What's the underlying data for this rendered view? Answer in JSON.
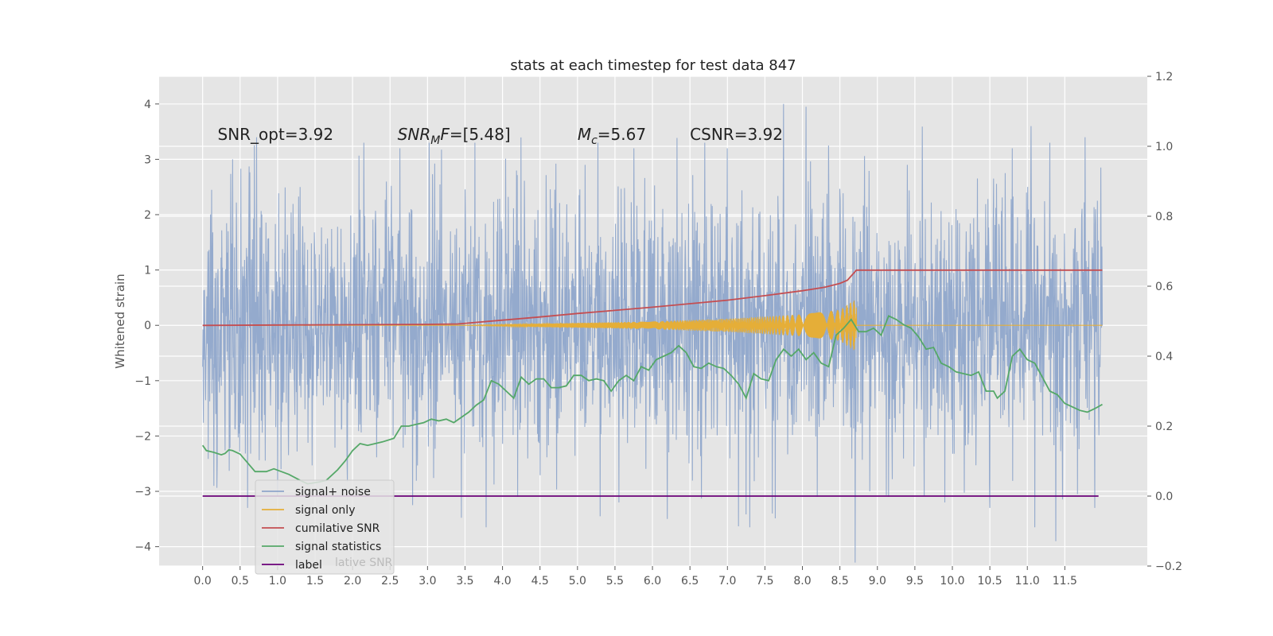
{
  "chart_data": {
    "type": "line",
    "title": "stats at each timestep for test data 847",
    "ylabel": "Whitened strain",
    "ylabel_right": "",
    "xlabel": "",
    "xlim": [
      -0.58,
      12.6
    ],
    "ylim": [
      -4.35,
      4.5
    ],
    "y2lim": [
      -0.2,
      1.2
    ],
    "x_ticks": [
      0,
      0.5,
      1,
      1.5,
      2,
      2.5,
      3,
      3.5,
      4,
      4.5,
      5,
      5.5,
      6,
      6.5,
      7,
      7.5,
      8,
      8.5,
      9,
      9.5,
      10,
      10.5,
      11,
      11.5
    ],
    "x_tick_labels": [
      "0.0",
      "0.5",
      "1.0",
      "1.5",
      "2.0",
      "2.5",
      "3.0",
      "3.5",
      "4.0",
      "4.5",
      "5.0",
      "5.5",
      "6.0",
      "6.5",
      "7.0",
      "7.5",
      "8.0",
      "8.5",
      "9.0",
      "9.5",
      "10.0",
      "10.5",
      "11.0",
      "11.5"
    ],
    "y_ticks": [
      4,
      3,
      2,
      1,
      0,
      -1,
      -2,
      -3,
      -4
    ],
    "y_tick_labels": [
      "4",
      "3",
      "2",
      "1",
      "0",
      "−1",
      "−2",
      "−3",
      "−4"
    ],
    "y2_ticks": [
      1.2,
      1.0,
      0.8,
      0.6,
      0.4,
      0.2,
      0.0,
      -0.2
    ],
    "y2_tick_labels": [
      "1.2",
      "1.0",
      "0.8",
      "0.6",
      "0.4",
      "0.2",
      "0.0",
      "−0.2"
    ],
    "grid": true,
    "legend_position": "lower-left",
    "annotations": [
      {
        "text": "SNR_opt=3.92",
        "x": 0.2,
        "y": 3.35
      },
      {
        "text": "SNR",
        "sub": "M",
        "after": "F=[5.48]",
        "italic": true,
        "x": 2.6,
        "y": 3.35
      },
      {
        "text": "M",
        "sub": "c",
        "after": "=5.67",
        "italic": true,
        "x": 5.0,
        "y": 3.35
      },
      {
        "text": "CSNR=3.92",
        "x": 6.5,
        "y": 3.35
      }
    ],
    "ghost_legend_text": "lative SNR",
    "series": [
      {
        "name": "signal+ noise",
        "axis": "left",
        "color": "#8fa6cb",
        "style": "noise",
        "x_range": [
          0,
          12.0
        ],
        "amplitude_sigma": 1.1,
        "peak_points": [
          [
            0.0,
            1.1
          ],
          [
            0.12,
            2.45
          ],
          [
            0.4,
            3.0
          ],
          [
            0.72,
            3.4
          ],
          [
            1.3,
            2.5
          ],
          [
            2.15,
            3.3
          ],
          [
            2.63,
            3.2
          ],
          [
            3.02,
            3.3
          ],
          [
            3.63,
            3.3
          ],
          [
            3.78,
            4.15
          ],
          [
            5.1,
            2.9
          ],
          [
            5.27,
            3.3
          ],
          [
            5.75,
            3.2
          ],
          [
            6.0,
            1.3
          ],
          [
            6.7,
            3.3
          ],
          [
            7.0,
            3.2
          ],
          [
            7.75,
            4.0
          ],
          [
            8.05,
            3.95
          ],
          [
            9.4,
            2.9
          ],
          [
            10.8,
            3.2
          ],
          [
            11.05,
            3.6
          ],
          [
            11.3,
            3.3
          ],
          [
            11.77,
            3.4
          ],
          [
            11.98,
            2.85
          ]
        ],
        "trough_points": [
          [
            0.0,
            -0.75
          ],
          [
            0.15,
            -2.9
          ],
          [
            0.6,
            -3.3
          ],
          [
            1.0,
            -3.1
          ],
          [
            2.8,
            -3.25
          ],
          [
            3.78,
            -3.65
          ],
          [
            4.2,
            -3.1
          ],
          [
            5.3,
            -3.45
          ],
          [
            5.55,
            -3.2
          ],
          [
            6.2,
            -3.5
          ],
          [
            7.3,
            -3.65
          ],
          [
            7.6,
            -3.4
          ],
          [
            8.2,
            -3.1
          ],
          [
            8.9,
            -3.0
          ],
          [
            9.15,
            -3.1
          ],
          [
            9.9,
            -3.2
          ],
          [
            10.5,
            -3.3
          ],
          [
            11.1,
            -3.65
          ],
          [
            11.38,
            -3.9
          ],
          [
            11.9,
            -3.3
          ]
        ]
      },
      {
        "name": "signal only",
        "axis": "left",
        "color": "#e5ae38",
        "style": "chirp",
        "x_range": [
          0,
          12.0
        ],
        "chirp_start": 3.4,
        "chirp_end": 8.72,
        "envelope_points": [
          [
            3.4,
            0.0
          ],
          [
            4.5,
            0.03
          ],
          [
            6.0,
            0.07
          ],
          [
            7.0,
            0.12
          ],
          [
            8.0,
            0.2
          ],
          [
            8.5,
            0.28
          ],
          [
            8.68,
            0.45
          ]
        ]
      },
      {
        "name": "cumilative SNR",
        "axis": "right",
        "color": "#c44e52",
        "style": "line",
        "points": [
          [
            0.0,
            0.488
          ],
          [
            1.0,
            0.489
          ],
          [
            2.0,
            0.49
          ],
          [
            3.0,
            0.491
          ],
          [
            3.4,
            0.492
          ],
          [
            4.0,
            0.503
          ],
          [
            4.5,
            0.512
          ],
          [
            5.0,
            0.522
          ],
          [
            5.5,
            0.531
          ],
          [
            6.0,
            0.54
          ],
          [
            6.5,
            0.55
          ],
          [
            7.0,
            0.56
          ],
          [
            7.5,
            0.573
          ],
          [
            8.0,
            0.587
          ],
          [
            8.3,
            0.597
          ],
          [
            8.5,
            0.608
          ],
          [
            8.6,
            0.617
          ],
          [
            8.72,
            0.646
          ],
          [
            12.0,
            0.646
          ]
        ]
      },
      {
        "name": "signal statistics",
        "axis": "right",
        "color": "#55a868",
        "style": "line",
        "points": [
          [
            0.0,
            0.145
          ],
          [
            0.05,
            0.13
          ],
          [
            0.15,
            0.125
          ],
          [
            0.25,
            0.118
          ],
          [
            0.3,
            0.122
          ],
          [
            0.35,
            0.132
          ],
          [
            0.4,
            0.13
          ],
          [
            0.5,
            0.12
          ],
          [
            0.6,
            0.095
          ],
          [
            0.7,
            0.07
          ],
          [
            0.85,
            0.07
          ],
          [
            0.95,
            0.078
          ],
          [
            1.05,
            0.07
          ],
          [
            1.15,
            0.062
          ],
          [
            1.3,
            0.045
          ],
          [
            1.4,
            0.035
          ],
          [
            1.55,
            0.04
          ],
          [
            1.65,
            0.045
          ],
          [
            1.8,
            0.075
          ],
          [
            1.9,
            0.1
          ],
          [
            2.0,
            0.13
          ],
          [
            2.1,
            0.15
          ],
          [
            2.2,
            0.145
          ],
          [
            2.3,
            0.15
          ],
          [
            2.4,
            0.155
          ],
          [
            2.55,
            0.165
          ],
          [
            2.65,
            0.2
          ],
          [
            2.75,
            0.2
          ],
          [
            2.85,
            0.205
          ],
          [
            2.95,
            0.21
          ],
          [
            3.05,
            0.22
          ],
          [
            3.15,
            0.215
          ],
          [
            3.25,
            0.22
          ],
          [
            3.35,
            0.21
          ],
          [
            3.45,
            0.225
          ],
          [
            3.55,
            0.24
          ],
          [
            3.65,
            0.26
          ],
          [
            3.75,
            0.275
          ],
          [
            3.85,
            0.33
          ],
          [
            3.95,
            0.32
          ],
          [
            4.05,
            0.3
          ],
          [
            4.15,
            0.28
          ],
          [
            4.25,
            0.34
          ],
          [
            4.35,
            0.32
          ],
          [
            4.45,
            0.335
          ],
          [
            4.55,
            0.335
          ],
          [
            4.65,
            0.31
          ],
          [
            4.75,
            0.31
          ],
          [
            4.85,
            0.315
          ],
          [
            4.95,
            0.345
          ],
          [
            5.05,
            0.345
          ],
          [
            5.15,
            0.33
          ],
          [
            5.25,
            0.335
          ],
          [
            5.35,
            0.33
          ],
          [
            5.45,
            0.3
          ],
          [
            5.55,
            0.33
          ],
          [
            5.65,
            0.345
          ],
          [
            5.75,
            0.33
          ],
          [
            5.85,
            0.37
          ],
          [
            5.95,
            0.36
          ],
          [
            6.05,
            0.39
          ],
          [
            6.15,
            0.4
          ],
          [
            6.25,
            0.41
          ],
          [
            6.35,
            0.43
          ],
          [
            6.45,
            0.41
          ],
          [
            6.55,
            0.37
          ],
          [
            6.65,
            0.365
          ],
          [
            6.75,
            0.38
          ],
          [
            6.85,
            0.37
          ],
          [
            6.95,
            0.365
          ],
          [
            7.05,
            0.345
          ],
          [
            7.15,
            0.32
          ],
          [
            7.25,
            0.28
          ],
          [
            7.35,
            0.35
          ],
          [
            7.45,
            0.335
          ],
          [
            7.55,
            0.33
          ],
          [
            7.65,
            0.39
          ],
          [
            7.75,
            0.42
          ],
          [
            7.85,
            0.4
          ],
          [
            7.95,
            0.42
          ],
          [
            8.05,
            0.39
          ],
          [
            8.15,
            0.41
          ],
          [
            8.25,
            0.38
          ],
          [
            8.35,
            0.37
          ],
          [
            8.45,
            0.46
          ],
          [
            8.55,
            0.48
          ],
          [
            8.65,
            0.505
          ],
          [
            8.75,
            0.47
          ],
          [
            8.85,
            0.47
          ],
          [
            8.95,
            0.48
          ],
          [
            9.05,
            0.46
          ],
          [
            9.15,
            0.515
          ],
          [
            9.25,
            0.505
          ],
          [
            9.35,
            0.49
          ],
          [
            9.45,
            0.48
          ],
          [
            9.55,
            0.455
          ],
          [
            9.65,
            0.42
          ],
          [
            9.75,
            0.425
          ],
          [
            9.85,
            0.38
          ],
          [
            9.95,
            0.37
          ],
          [
            10.05,
            0.355
          ],
          [
            10.15,
            0.35
          ],
          [
            10.25,
            0.345
          ],
          [
            10.35,
            0.355
          ],
          [
            10.45,
            0.3
          ],
          [
            10.55,
            0.3
          ],
          [
            10.6,
            0.28
          ],
          [
            10.7,
            0.3
          ],
          [
            10.8,
            0.4
          ],
          [
            10.9,
            0.42
          ],
          [
            11.0,
            0.39
          ],
          [
            11.1,
            0.38
          ],
          [
            11.2,
            0.34
          ],
          [
            11.3,
            0.3
          ],
          [
            11.4,
            0.29
          ],
          [
            11.5,
            0.265
          ],
          [
            11.6,
            0.255
          ],
          [
            11.7,
            0.245
          ],
          [
            11.8,
            0.24
          ],
          [
            11.9,
            0.25
          ],
          [
            12.0,
            0.262
          ]
        ]
      },
      {
        "name": "label",
        "axis": "right",
        "color": "#6a0078",
        "style": "line",
        "points": [
          [
            0.0,
            0.0
          ],
          [
            11.95,
            0.0
          ]
        ]
      }
    ]
  }
}
